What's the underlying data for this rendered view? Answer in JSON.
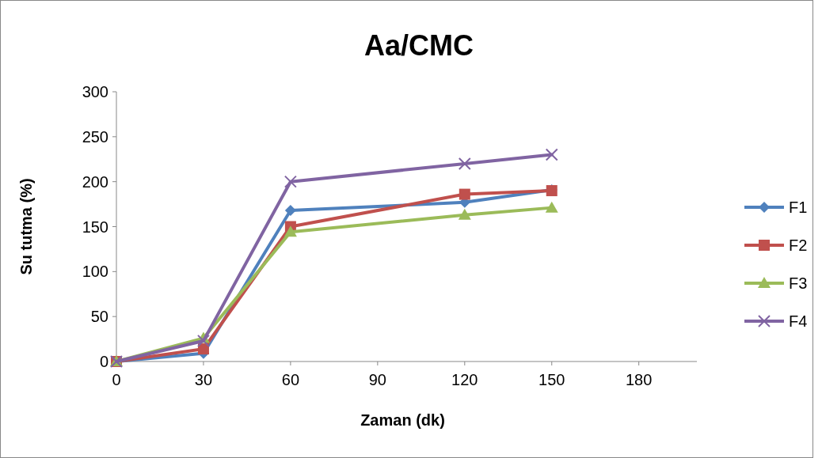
{
  "chart_data": {
    "type": "line",
    "title": "Aa/CMC",
    "xlabel": "Zaman (dk)",
    "ylabel": "Su tutma (%)",
    "x": [
      0,
      30,
      60,
      120,
      150
    ],
    "xlim": [
      0,
      200
    ],
    "xticks": [
      0,
      30,
      60,
      90,
      120,
      150,
      180
    ],
    "ylim": [
      0,
      300
    ],
    "yticks": [
      0,
      50,
      100,
      150,
      200,
      250,
      300
    ],
    "legend": "right",
    "grid": false,
    "series": [
      {
        "name": "F1",
        "color": "#4f81bd",
        "marker": "diamond",
        "values": [
          0,
          9,
          168,
          177,
          191
        ]
      },
      {
        "name": "F2",
        "color": "#c0504d",
        "marker": "square",
        "values": [
          0,
          14,
          150,
          186,
          190
        ]
      },
      {
        "name": "F3",
        "color": "#9bbb59",
        "marker": "triangle",
        "values": [
          0,
          26,
          144,
          163,
          171
        ]
      },
      {
        "name": "F4",
        "color": "#8064a2",
        "marker": "cross",
        "values": [
          0,
          23,
          200,
          220,
          230
        ]
      }
    ]
  }
}
